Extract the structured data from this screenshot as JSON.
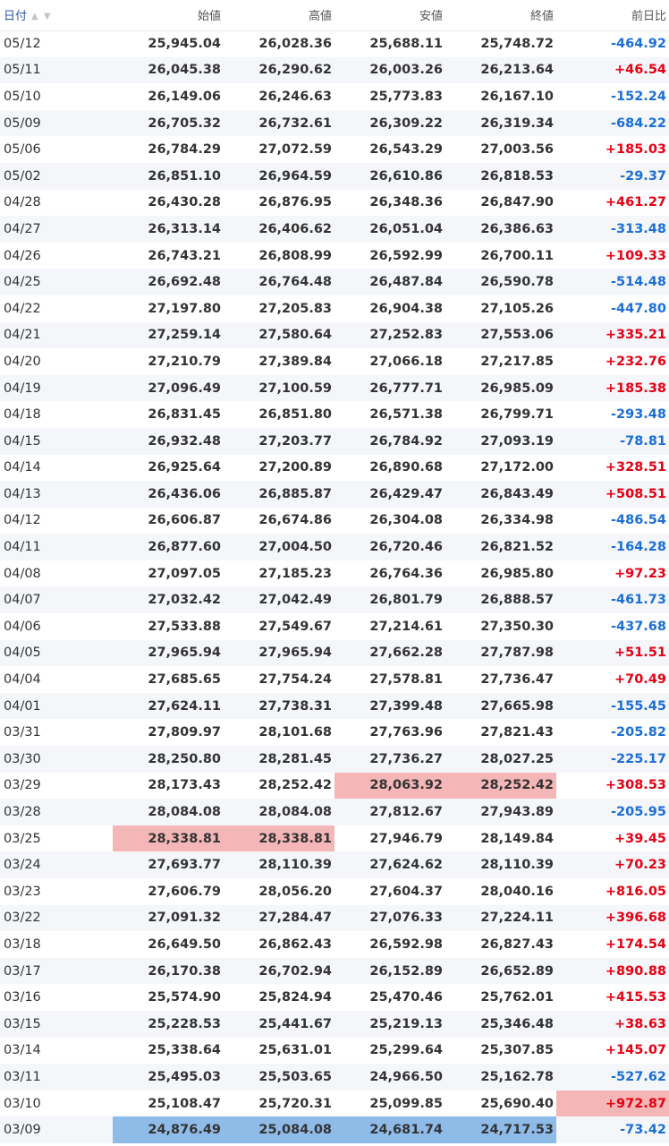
{
  "header": {
    "date": "日付",
    "open": "始値",
    "high": "高値",
    "low": "安値",
    "close": "終値",
    "change": "前日比",
    "sort_up": "▲",
    "sort_down": "▼"
  },
  "colors": {
    "up": "#e60012",
    "down": "#1a6fd8",
    "highlight_red": "#f4b6b6",
    "highlight_blue": "#8fbbe9"
  },
  "rows": [
    {
      "d": "05/12",
      "o": "25,945.04",
      "h": "26,028.36",
      "l": "25,688.11",
      "c": "25,748.72",
      "chg": "-464.92"
    },
    {
      "d": "05/11",
      "o": "26,045.38",
      "h": "26,290.62",
      "l": "26,003.26",
      "c": "26,213.64",
      "chg": "+46.54"
    },
    {
      "d": "05/10",
      "o": "26,149.06",
      "h": "26,246.63",
      "l": "25,773.83",
      "c": "26,167.10",
      "chg": "-152.24"
    },
    {
      "d": "05/09",
      "o": "26,705.32",
      "h": "26,732.61",
      "l": "26,309.22",
      "c": "26,319.34",
      "chg": "-684.22"
    },
    {
      "d": "05/06",
      "o": "26,784.29",
      "h": "27,072.59",
      "l": "26,543.29",
      "c": "27,003.56",
      "chg": "+185.03"
    },
    {
      "d": "05/02",
      "o": "26,851.10",
      "h": "26,964.59",
      "l": "26,610.86",
      "c": "26,818.53",
      "chg": "-29.37"
    },
    {
      "d": "04/28",
      "o": "26,430.28",
      "h": "26,876.95",
      "l": "26,348.36",
      "c": "26,847.90",
      "chg": "+461.27"
    },
    {
      "d": "04/27",
      "o": "26,313.14",
      "h": "26,406.62",
      "l": "26,051.04",
      "c": "26,386.63",
      "chg": "-313.48"
    },
    {
      "d": "04/26",
      "o": "26,743.21",
      "h": "26,808.99",
      "l": "26,592.99",
      "c": "26,700.11",
      "chg": "+109.33"
    },
    {
      "d": "04/25",
      "o": "26,692.48",
      "h": "26,764.48",
      "l": "26,487.84",
      "c": "26,590.78",
      "chg": "-514.48"
    },
    {
      "d": "04/22",
      "o": "27,197.80",
      "h": "27,205.83",
      "l": "26,904.38",
      "c": "27,105.26",
      "chg": "-447.80"
    },
    {
      "d": "04/21",
      "o": "27,259.14",
      "h": "27,580.64",
      "l": "27,252.83",
      "c": "27,553.06",
      "chg": "+335.21"
    },
    {
      "d": "04/20",
      "o": "27,210.79",
      "h": "27,389.84",
      "l": "27,066.18",
      "c": "27,217.85",
      "chg": "+232.76"
    },
    {
      "d": "04/19",
      "o": "27,096.49",
      "h": "27,100.59",
      "l": "26,777.71",
      "c": "26,985.09",
      "chg": "+185.38"
    },
    {
      "d": "04/18",
      "o": "26,831.45",
      "h": "26,851.80",
      "l": "26,571.38",
      "c": "26,799.71",
      "chg": "-293.48"
    },
    {
      "d": "04/15",
      "o": "26,932.48",
      "h": "27,203.77",
      "l": "26,784.92",
      "c": "27,093.19",
      "chg": "-78.81"
    },
    {
      "d": "04/14",
      "o": "26,925.64",
      "h": "27,200.89",
      "l": "26,890.68",
      "c": "27,172.00",
      "chg": "+328.51"
    },
    {
      "d": "04/13",
      "o": "26,436.06",
      "h": "26,885.87",
      "l": "26,429.47",
      "c": "26,843.49",
      "chg": "+508.51"
    },
    {
      "d": "04/12",
      "o": "26,606.87",
      "h": "26,674.86",
      "l": "26,304.08",
      "c": "26,334.98",
      "chg": "-486.54"
    },
    {
      "d": "04/11",
      "o": "26,877.60",
      "h": "27,004.50",
      "l": "26,720.46",
      "c": "26,821.52",
      "chg": "-164.28"
    },
    {
      "d": "04/08",
      "o": "27,097.05",
      "h": "27,185.23",
      "l": "26,764.36",
      "c": "26,985.80",
      "chg": "+97.23"
    },
    {
      "d": "04/07",
      "o": "27,032.42",
      "h": "27,042.49",
      "l": "26,801.79",
      "c": "26,888.57",
      "chg": "-461.73"
    },
    {
      "d": "04/06",
      "o": "27,533.88",
      "h": "27,549.67",
      "l": "27,214.61",
      "c": "27,350.30",
      "chg": "-437.68"
    },
    {
      "d": "04/05",
      "o": "27,965.94",
      "h": "27,965.94",
      "l": "27,662.28",
      "c": "27,787.98",
      "chg": "+51.51"
    },
    {
      "d": "04/04",
      "o": "27,685.65",
      "h": "27,754.24",
      "l": "27,578.81",
      "c": "27,736.47",
      "chg": "+70.49"
    },
    {
      "d": "04/01",
      "o": "27,624.11",
      "h": "27,738.31",
      "l": "27,399.48",
      "c": "27,665.98",
      "chg": "-155.45"
    },
    {
      "d": "03/31",
      "o": "27,809.97",
      "h": "28,101.68",
      "l": "27,763.96",
      "c": "27,821.43",
      "chg": "-205.82"
    },
    {
      "d": "03/30",
      "o": "28,250.80",
      "h": "28,281.45",
      "l": "27,736.27",
      "c": "28,027.25",
      "chg": "-225.17"
    },
    {
      "d": "03/29",
      "o": "28,173.43",
      "h": "28,252.42",
      "l": "28,063.92",
      "c": "28,252.42",
      "chg": "+308.53",
      "hl": {
        "l": "red",
        "c": "red"
      }
    },
    {
      "d": "03/28",
      "o": "28,084.08",
      "h": "28,084.08",
      "l": "27,812.67",
      "c": "27,943.89",
      "chg": "-205.95"
    },
    {
      "d": "03/25",
      "o": "28,338.81",
      "h": "28,338.81",
      "l": "27,946.79",
      "c": "28,149.84",
      "chg": "+39.45",
      "hl": {
        "o": "red",
        "h": "red"
      }
    },
    {
      "d": "03/24",
      "o": "27,693.77",
      "h": "28,110.39",
      "l": "27,624.62",
      "c": "28,110.39",
      "chg": "+70.23"
    },
    {
      "d": "03/23",
      "o": "27,606.79",
      "h": "28,056.20",
      "l": "27,604.37",
      "c": "28,040.16",
      "chg": "+816.05"
    },
    {
      "d": "03/22",
      "o": "27,091.32",
      "h": "27,284.47",
      "l": "27,076.33",
      "c": "27,224.11",
      "chg": "+396.68"
    },
    {
      "d": "03/18",
      "o": "26,649.50",
      "h": "26,862.43",
      "l": "26,592.98",
      "c": "26,827.43",
      "chg": "+174.54"
    },
    {
      "d": "03/17",
      "o": "26,170.38",
      "h": "26,702.94",
      "l": "26,152.89",
      "c": "26,652.89",
      "chg": "+890.88"
    },
    {
      "d": "03/16",
      "o": "25,574.90",
      "h": "25,824.94",
      "l": "25,470.46",
      "c": "25,762.01",
      "chg": "+415.53"
    },
    {
      "d": "03/15",
      "o": "25,228.53",
      "h": "25,441.67",
      "l": "25,219.13",
      "c": "25,346.48",
      "chg": "+38.63"
    },
    {
      "d": "03/14",
      "o": "25,338.64",
      "h": "25,631.01",
      "l": "25,299.64",
      "c": "25,307.85",
      "chg": "+145.07"
    },
    {
      "d": "03/11",
      "o": "25,495.03",
      "h": "25,503.65",
      "l": "24,966.50",
      "c": "25,162.78",
      "chg": "-527.62"
    },
    {
      "d": "03/10",
      "o": "25,108.47",
      "h": "25,720.31",
      "l": "25,099.85",
      "c": "25,690.40",
      "chg": "+972.87",
      "hl": {
        "chg": "red"
      }
    },
    {
      "d": "03/09",
      "o": "24,876.49",
      "h": "25,084.08",
      "l": "24,681.74",
      "c": "24,717.53",
      "chg": "-73.42",
      "hl": {
        "o": "blue",
        "h": "blue",
        "l": "blue",
        "c": "blue"
      }
    }
  ]
}
